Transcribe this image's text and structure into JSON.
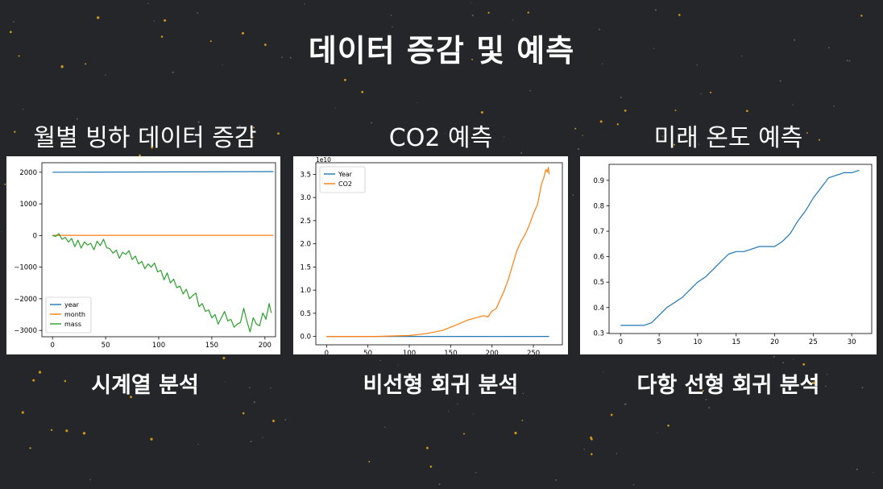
{
  "slide": {
    "title": "데이터 증감 및 예측"
  },
  "panels": [
    {
      "title": "월별 빙하 데이터 증감",
      "caption": "시계열 분석"
    },
    {
      "title": "CO2 예측",
      "caption": "비선형 회귀 분석"
    },
    {
      "title": "미래 온도 예측",
      "caption": "다항 선형 회귀 분석"
    }
  ],
  "colors": {
    "background": "#24262a",
    "blue": "#1f77b4",
    "orange": "#ff7f0e",
    "green": "#2ca02c",
    "star": "#e0a21a"
  },
  "chart_data": [
    {
      "type": "line",
      "xlim": [
        -10,
        210
      ],
      "ylim": [
        -3200,
        2300
      ],
      "xticks": [
        "0",
        "50",
        "100",
        "150",
        "200"
      ],
      "yticks": [
        "2000",
        "1000",
        "0",
        "−1000",
        "−2000",
        "−3000"
      ],
      "legend_position": "bottom-left",
      "series": [
        {
          "name": "year",
          "x": [
            0,
            208
          ],
          "values": [
            2000,
            2020
          ]
        },
        {
          "name": "month",
          "x": [
            0,
            208
          ],
          "values": [
            6.5,
            6.5
          ]
        },
        {
          "name": "mass",
          "x": [
            0,
            3,
            6,
            9,
            12,
            15,
            18,
            21,
            24,
            27,
            30,
            33,
            36,
            39,
            42,
            45,
            48,
            51,
            54,
            57,
            60,
            63,
            66,
            69,
            72,
            75,
            78,
            81,
            84,
            87,
            90,
            93,
            96,
            99,
            102,
            105,
            108,
            111,
            114,
            117,
            120,
            123,
            126,
            129,
            132,
            135,
            138,
            141,
            144,
            147,
            150,
            153,
            156,
            159,
            162,
            165,
            168,
            171,
            174,
            177,
            180,
            183,
            186,
            189,
            192,
            195,
            198,
            201,
            204,
            206
          ],
          "values": [
            0,
            -30,
            60,
            -120,
            -60,
            -210,
            -90,
            -350,
            -150,
            -400,
            -200,
            -300,
            -250,
            -450,
            -180,
            -320,
            -120,
            -380,
            -420,
            -560,
            -460,
            -720,
            -530,
            -600,
            -480,
            -760,
            -650,
            -900,
            -820,
            -1050,
            -900,
            -1000,
            -870,
            -1150,
            -1100,
            -1400,
            -1180,
            -1500,
            -1380,
            -1650,
            -1600,
            -1850,
            -1700,
            -2000,
            -1900,
            -1820,
            -2250,
            -2150,
            -2400,
            -2350,
            -2600,
            -2500,
            -2800,
            -2600,
            -2400,
            -2700,
            -2650,
            -2900,
            -2800,
            -2750,
            -2300,
            -2700,
            -3050,
            -2600,
            -2800,
            -2850,
            -2450,
            -2650,
            -2150,
            -2450
          ]
        }
      ]
    },
    {
      "type": "line",
      "xlim": [
        -13,
        285
      ],
      "ylim": [
        -0.18,
        3.75
      ],
      "xticks": [
        "0",
        "50",
        "100",
        "150",
        "200",
        "250"
      ],
      "yticks": [
        "0.0",
        "0.5",
        "1.0",
        "1.5",
        "2.0",
        "2.5",
        "3.0",
        "3.5"
      ],
      "y_offset_label": "1e10",
      "legend_position": "top-left",
      "series": [
        {
          "name": "Year",
          "x": [
            0,
            269
          ],
          "values": [
            0.0,
            0.0
          ]
        },
        {
          "name": "CO2",
          "x": [
            0,
            60,
            100,
            120,
            140,
            150,
            160,
            170,
            180,
            190,
            195,
            200,
            205,
            210,
            215,
            220,
            225,
            230,
            235,
            240,
            245,
            250,
            255,
            260,
            263,
            265,
            267,
            268,
            269
          ],
          "values": [
            0.0,
            0.0,
            0.02,
            0.06,
            0.13,
            0.2,
            0.27,
            0.35,
            0.4,
            0.45,
            0.42,
            0.55,
            0.6,
            0.8,
            1.0,
            1.25,
            1.55,
            1.85,
            2.05,
            2.2,
            2.4,
            2.65,
            2.85,
            3.3,
            3.45,
            3.6,
            3.55,
            3.65,
            3.5
          ]
        }
      ]
    },
    {
      "type": "line",
      "xlim": [
        -1.5,
        32.6
      ],
      "ylim": [
        0.298,
        0.963
      ],
      "xticks": [
        "0",
        "5",
        "10",
        "15",
        "20",
        "25",
        "30"
      ],
      "yticks": [
        "0.3",
        "0.4",
        "0.5",
        "0.6",
        "0.7",
        "0.8",
        "0.9"
      ],
      "series": [
        {
          "x": [
            0,
            1,
            2,
            3,
            4,
            5,
            6,
            7,
            8,
            9,
            10,
            11,
            12,
            13,
            14,
            15,
            16,
            17,
            18,
            19,
            20,
            21,
            22,
            23,
            24,
            25,
            26,
            27,
            28,
            29,
            30,
            31
          ],
          "values": [
            0.33,
            0.33,
            0.33,
            0.33,
            0.34,
            0.37,
            0.4,
            0.42,
            0.44,
            0.47,
            0.5,
            0.52,
            0.55,
            0.58,
            0.61,
            0.62,
            0.62,
            0.63,
            0.64,
            0.64,
            0.64,
            0.66,
            0.69,
            0.74,
            0.78,
            0.83,
            0.87,
            0.91,
            0.92,
            0.93,
            0.93,
            0.94
          ]
        }
      ]
    }
  ]
}
